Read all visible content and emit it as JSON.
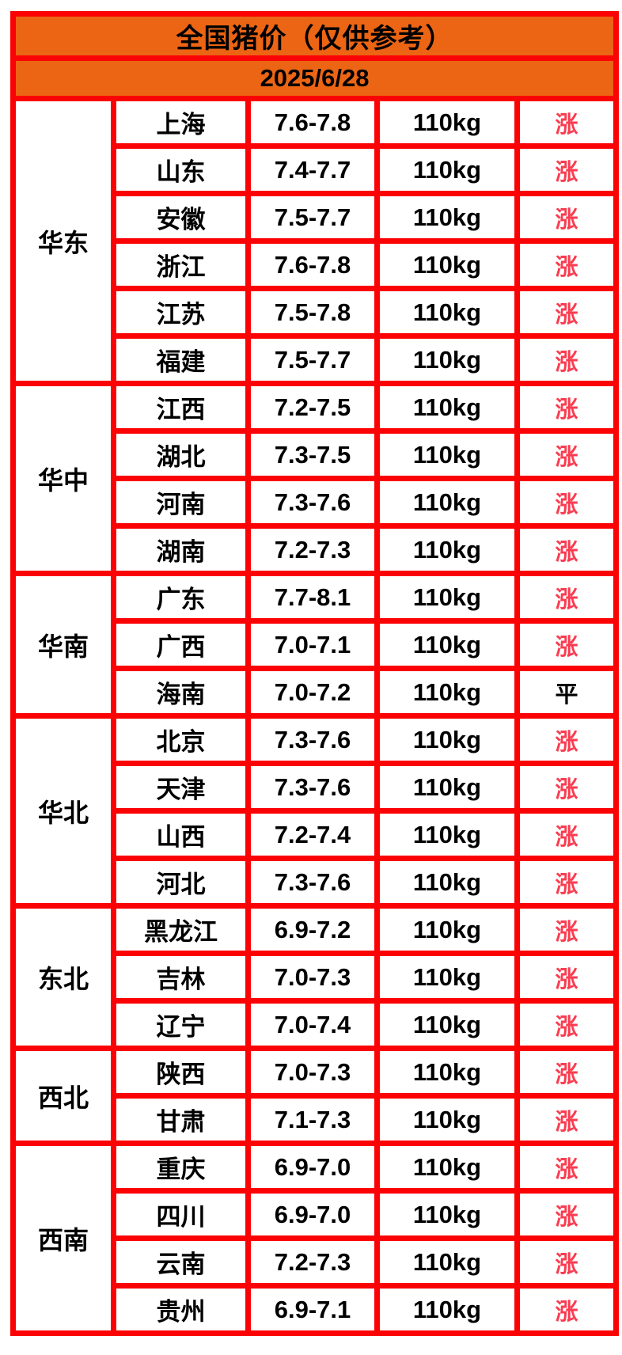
{
  "title": "全国猪价（仅供参考）",
  "date": "2025/6/28",
  "colors": {
    "header_orange": "#EC6514",
    "grid_red": "#FB0305",
    "rise_pink_red": "#FA3C50",
    "flat_black": "#000000",
    "cell_background": "#FFFFFF"
  },
  "regions": [
    {
      "region": "华东",
      "rows": [
        {
          "province": "上海",
          "price": "7.6-7.8",
          "weight": "110kg",
          "status": "涨"
        },
        {
          "province": "山东",
          "price": "7.4-7.7",
          "weight": "110kg",
          "status": "涨"
        },
        {
          "province": "安徽",
          "price": "7.5-7.7",
          "weight": "110kg",
          "status": "涨"
        },
        {
          "province": "浙江",
          "price": "7.6-7.8",
          "weight": "110kg",
          "status": "涨"
        },
        {
          "province": "江苏",
          "price": "7.5-7.8",
          "weight": "110kg",
          "status": "涨"
        },
        {
          "province": "福建",
          "price": "7.5-7.7",
          "weight": "110kg",
          "status": "涨"
        }
      ]
    },
    {
      "region": "华中",
      "rows": [
        {
          "province": "江西",
          "price": "7.2-7.5",
          "weight": "110kg",
          "status": "涨"
        },
        {
          "province": "湖北",
          "price": "7.3-7.5",
          "weight": "110kg",
          "status": "涨"
        },
        {
          "province": "河南",
          "price": "7.3-7.6",
          "weight": "110kg",
          "status": "涨"
        },
        {
          "province": "湖南",
          "price": "7.2-7.3",
          "weight": "110kg",
          "status": "涨"
        }
      ]
    },
    {
      "region": "华南",
      "rows": [
        {
          "province": "广东",
          "price": "7.7-8.1",
          "weight": "110kg",
          "status": "涨"
        },
        {
          "province": "广西",
          "price": "7.0-7.1",
          "weight": "110kg",
          "status": "涨"
        },
        {
          "province": "海南",
          "price": "7.0-7.2",
          "weight": "110kg",
          "status": "平"
        }
      ]
    },
    {
      "region": "华北",
      "rows": [
        {
          "province": "北京",
          "price": "7.3-7.6",
          "weight": "110kg",
          "status": "涨"
        },
        {
          "province": "天津",
          "price": "7.3-7.6",
          "weight": "110kg",
          "status": "涨"
        },
        {
          "province": "山西",
          "price": "7.2-7.4",
          "weight": "110kg",
          "status": "涨"
        },
        {
          "province": "河北",
          "price": "7.3-7.6",
          "weight": "110kg",
          "status": "涨"
        }
      ]
    },
    {
      "region": "东北",
      "rows": [
        {
          "province": "黑龙江",
          "price": "6.9-7.2",
          "weight": "110kg",
          "status": "涨"
        },
        {
          "province": "吉林",
          "price": "7.0-7.3",
          "weight": "110kg",
          "status": "涨"
        },
        {
          "province": "辽宁",
          "price": "7.0-7.4",
          "weight": "110kg",
          "status": "涨"
        }
      ]
    },
    {
      "region": "西北",
      "rows": [
        {
          "province": "陕西",
          "price": "7.0-7.3",
          "weight": "110kg",
          "status": "涨"
        },
        {
          "province": "甘肃",
          "price": "7.1-7.3",
          "weight": "110kg",
          "status": "涨"
        }
      ]
    },
    {
      "region": "西南",
      "rows": [
        {
          "province": "重庆",
          "price": "6.9-7.0",
          "weight": "110kg",
          "status": "涨"
        },
        {
          "province": "四川",
          "price": "6.9-7.0",
          "weight": "110kg",
          "status": "涨"
        },
        {
          "province": "云南",
          "price": "7.2-7.3",
          "weight": "110kg",
          "status": "涨"
        },
        {
          "province": "贵州",
          "price": "6.9-7.1",
          "weight": "110kg",
          "status": "涨"
        }
      ]
    }
  ],
  "chart_data": {
    "type": "table",
    "title": "全国猪价（仅供参考）",
    "date": "2025/6/28",
    "columns": [
      "region",
      "province",
      "price_range",
      "weight",
      "trend"
    ],
    "rows": [
      [
        "华东",
        "上海",
        "7.6-7.8",
        "110kg",
        "涨"
      ],
      [
        "华东",
        "山东",
        "7.4-7.7",
        "110kg",
        "涨"
      ],
      [
        "华东",
        "安徽",
        "7.5-7.7",
        "110kg",
        "涨"
      ],
      [
        "华东",
        "浙江",
        "7.6-7.8",
        "110kg",
        "涨"
      ],
      [
        "华东",
        "江苏",
        "7.5-7.8",
        "110kg",
        "涨"
      ],
      [
        "华东",
        "福建",
        "7.5-7.7",
        "110kg",
        "涨"
      ],
      [
        "华中",
        "江西",
        "7.2-7.5",
        "110kg",
        "涨"
      ],
      [
        "华中",
        "湖北",
        "7.3-7.5",
        "110kg",
        "涨"
      ],
      [
        "华中",
        "河南",
        "7.3-7.6",
        "110kg",
        "涨"
      ],
      [
        "华中",
        "湖南",
        "7.2-7.3",
        "110kg",
        "涨"
      ],
      [
        "华南",
        "广东",
        "7.7-8.1",
        "110kg",
        "涨"
      ],
      [
        "华南",
        "广西",
        "7.0-7.1",
        "110kg",
        "涨"
      ],
      [
        "华南",
        "海南",
        "7.0-7.2",
        "110kg",
        "平"
      ],
      [
        "华北",
        "北京",
        "7.3-7.6",
        "110kg",
        "涨"
      ],
      [
        "华北",
        "天津",
        "7.3-7.6",
        "110kg",
        "涨"
      ],
      [
        "华北",
        "山西",
        "7.2-7.4",
        "110kg",
        "涨"
      ],
      [
        "华北",
        "河北",
        "7.3-7.6",
        "110kg",
        "涨"
      ],
      [
        "东北",
        "黑龙江",
        "6.9-7.2",
        "110kg",
        "涨"
      ],
      [
        "东北",
        "吉林",
        "7.0-7.3",
        "110kg",
        "涨"
      ],
      [
        "东北",
        "辽宁",
        "7.0-7.4",
        "110kg",
        "涨"
      ],
      [
        "西北",
        "陕西",
        "7.0-7.3",
        "110kg",
        "涨"
      ],
      [
        "西北",
        "甘肃",
        "7.1-7.3",
        "110kg",
        "涨"
      ],
      [
        "西南",
        "重庆",
        "6.9-7.0",
        "110kg",
        "涨"
      ],
      [
        "西南",
        "四川",
        "6.9-7.0",
        "110kg",
        "涨"
      ],
      [
        "西南",
        "云南",
        "7.2-7.3",
        "110kg",
        "涨"
      ],
      [
        "西南",
        "贵州",
        "6.9-7.1",
        "110kg",
        "涨"
      ]
    ]
  }
}
